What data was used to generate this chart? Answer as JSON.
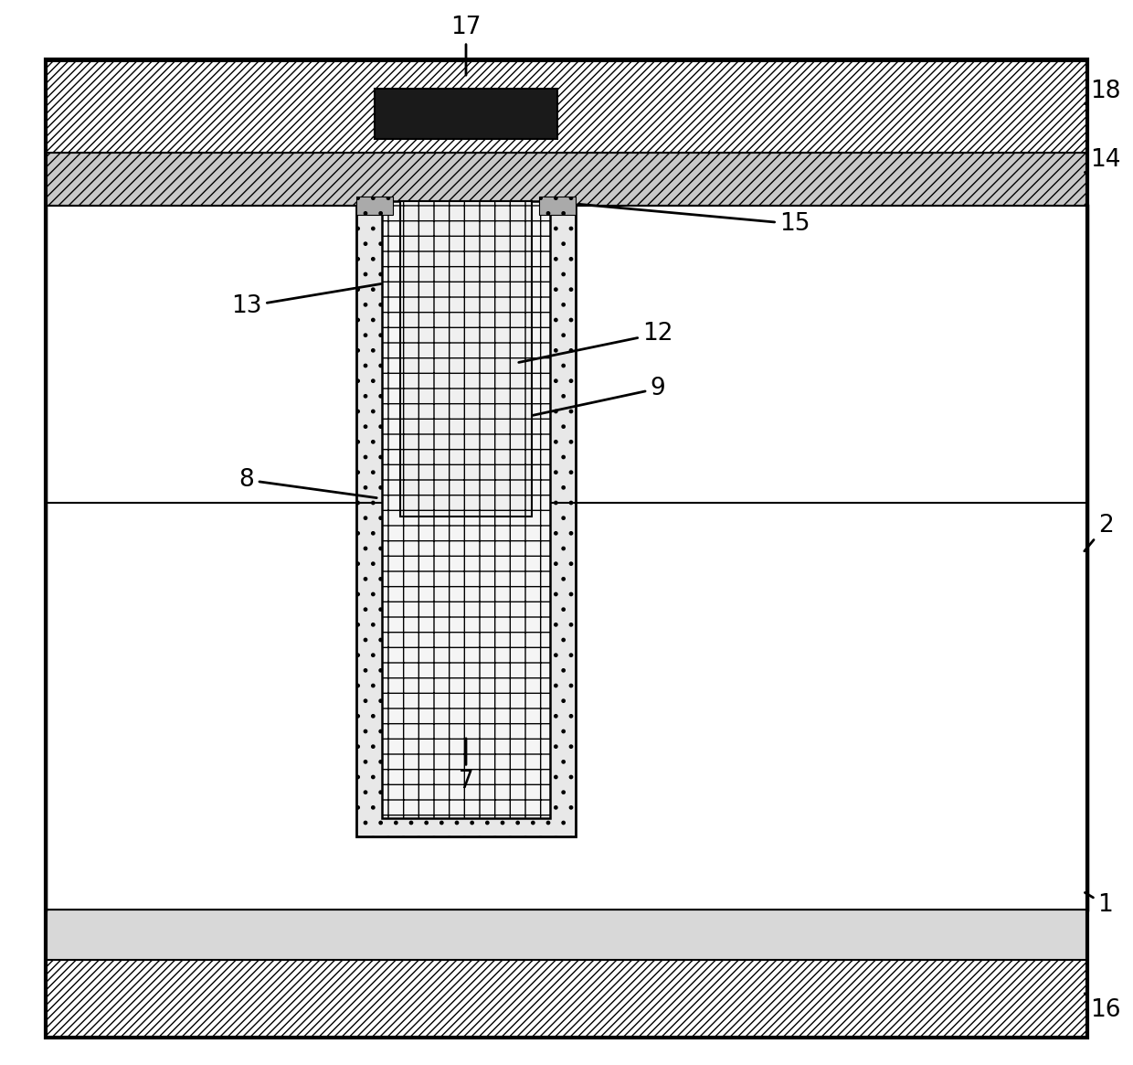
{
  "fig_width": 12.4,
  "fig_height": 11.65,
  "dpi": 100,
  "bg_color": "#ffffff",
  "border_color": "#000000",
  "border_lw": 2.5
}
